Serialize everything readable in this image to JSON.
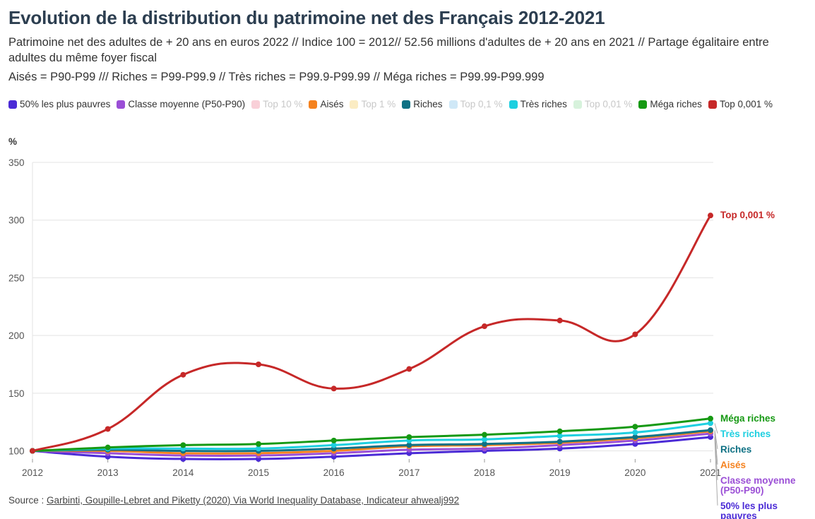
{
  "title": "Evolution de la distribution du patrimoine net des Français 2012-2021",
  "subtitle": "Patrimoine net des adultes de + 20 ans en euros 2022 // Indice 100 = 2012// 52.56 millions d'adultes de + 20 ans en 2021 // Partage égalitaire entre adultes du même foyer fiscal",
  "subtitle2": "Aisés = P90-P99 /// Riches = P99-P99.9 // Très riches = P99.9-P99.99 // Méga riches = P99.99-P99.999",
  "source": {
    "prefix": "Source : ",
    "link_text": "Garbinti, Goupille-Lebret and Piketty (2020) Via World Inequality Database, Indicateur ahwealj992"
  },
  "legend": [
    {
      "label": "50% les plus pauvres",
      "color": "#4b2bd6",
      "active": true
    },
    {
      "label": "Classe moyenne (P50-P90)",
      "color": "#9b4fd6",
      "active": true
    },
    {
      "label": "Top 10 %",
      "color": "#f9d0d8",
      "active": false
    },
    {
      "label": "Aisés",
      "color": "#f5821f",
      "active": true
    },
    {
      "label": "Top 1 %",
      "color": "#fbecc3",
      "active": false
    },
    {
      "label": "Riches",
      "color": "#0f7184",
      "active": true
    },
    {
      "label": "Top 0,1 %",
      "color": "#cfe8f7",
      "active": false
    },
    {
      "label": "Très riches",
      "color": "#1ecfe0",
      "active": true
    },
    {
      "label": "Top 0,01 %",
      "color": "#d7f2dc",
      "active": false
    },
    {
      "label": "Méga riches",
      "color": "#169913",
      "active": true
    },
    {
      "label": "Top 0,001 %",
      "color": "#c62828",
      "active": true
    }
  ],
  "chart_data": {
    "type": "line",
    "y_unit_label": "%",
    "x": [
      2012,
      2013,
      2014,
      2015,
      2016,
      2017,
      2018,
      2019,
      2020,
      2021
    ],
    "x_tick_labels": [
      "2012",
      "2013",
      "2014",
      "2015",
      "2016",
      "2017",
      "2018",
      "2019",
      "2020",
      "2021"
    ],
    "ylim": [
      93,
      350
    ],
    "y_ticks": [
      100,
      150,
      200,
      250,
      300,
      350
    ],
    "grid": true,
    "series": [
      {
        "name": "50% les plus pauvres",
        "end_label": "50% les plus pauvres",
        "color": "#4b2bd6",
        "values": [
          100,
          95,
          93,
          93,
          95,
          98,
          100,
          102,
          106,
          112
        ]
      },
      {
        "name": "Classe moyenne (P50-P90)",
        "end_label": "Classe moyenne (P50-P90)",
        "color": "#9b4fd6",
        "values": [
          100,
          98,
          96,
          96,
          98,
          101,
          102,
          105,
          109,
          115
        ]
      },
      {
        "name": "Aisés",
        "end_label": "Aisés",
        "color": "#f5821f",
        "values": [
          100,
          100,
          98,
          98,
          100,
          104,
          105,
          107,
          111,
          117
        ]
      },
      {
        "name": "Riches",
        "end_label": "Riches",
        "color": "#0f7184",
        "values": [
          100,
          101,
          100,
          100,
          102,
          105,
          106,
          108,
          112,
          118
        ]
      },
      {
        "name": "Très riches",
        "end_label": "Très riches",
        "color": "#1ecfe0",
        "values": [
          100,
          102,
          102,
          102,
          105,
          109,
          110,
          113,
          116,
          124
        ]
      },
      {
        "name": "Méga riches",
        "end_label": "Méga riches",
        "color": "#169913",
        "values": [
          100,
          103,
          105,
          106,
          109,
          112,
          114,
          117,
          121,
          128
        ]
      },
      {
        "name": "Top 0,001 %",
        "end_label": "Top 0,001 %",
        "color": "#c62828",
        "values": [
          100,
          119,
          166,
          175,
          154,
          171,
          208,
          213,
          201,
          304
        ]
      }
    ]
  }
}
